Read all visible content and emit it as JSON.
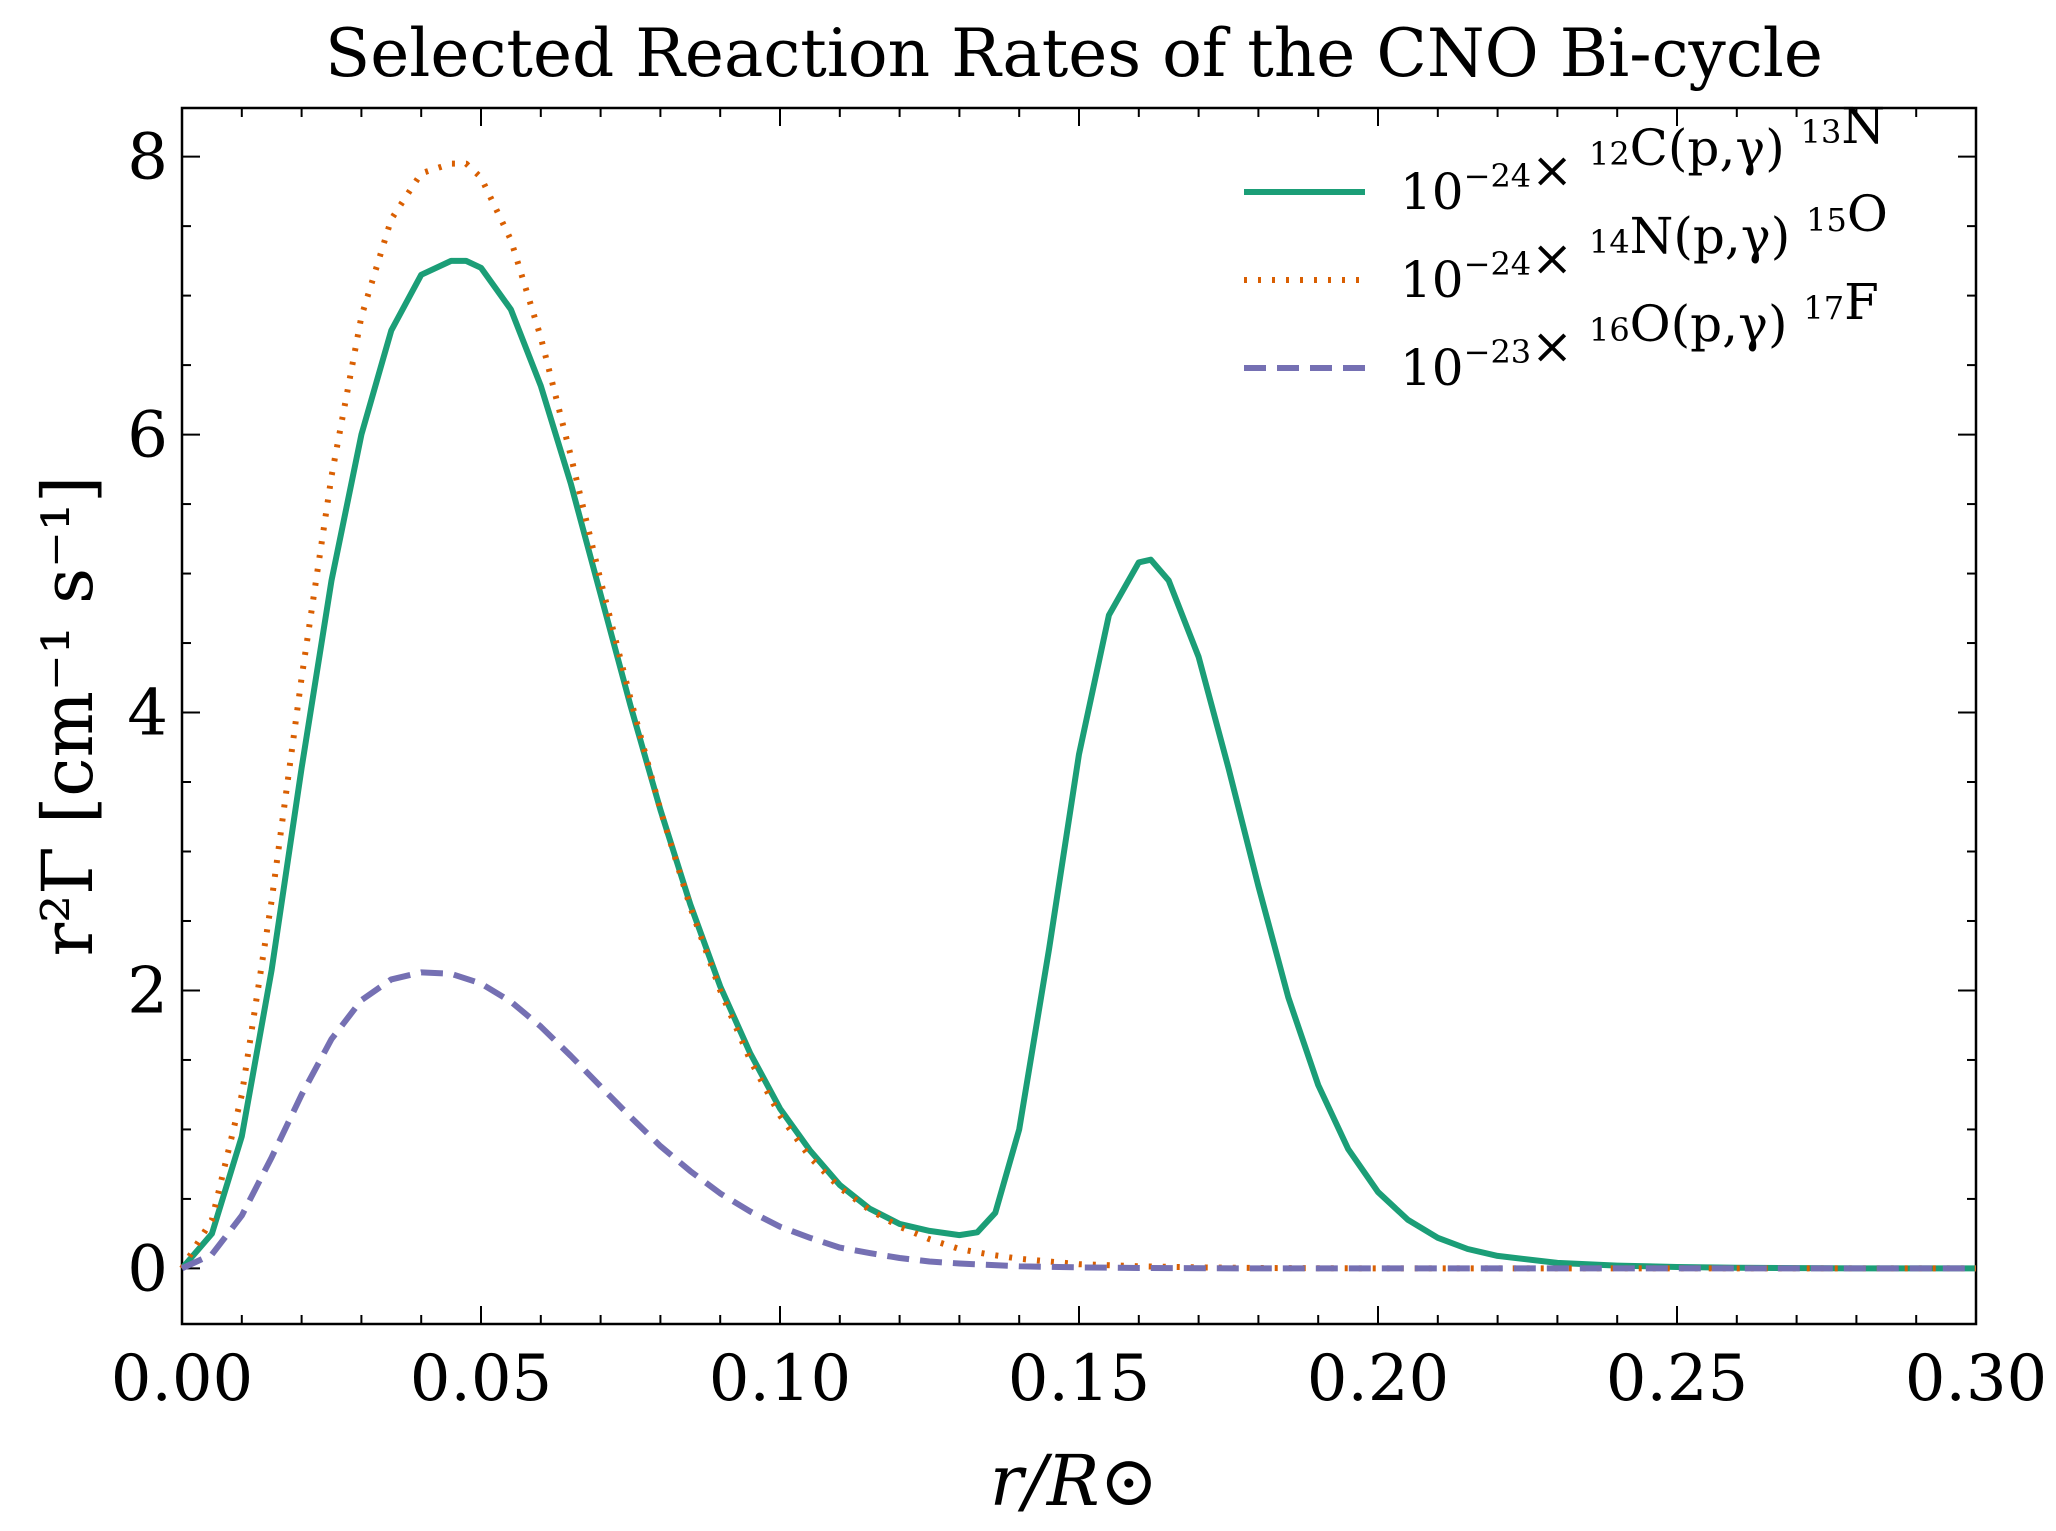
{
  "chart_data": {
    "type": "line",
    "title": "Selected Reaction Rates of the CNO Bi-cycle",
    "xlabel": "r/R⊙",
    "ylabel": "r²Γ [cm⁻¹ s⁻¹]",
    "xlim": [
      0.0,
      0.3
    ],
    "ylim": [
      -0.4,
      8.35
    ],
    "x_ticks": [
      0.0,
      0.05,
      0.1,
      0.15,
      0.2,
      0.25,
      0.3
    ],
    "x_tick_labels": [
      "0.00",
      "0.05",
      "0.10",
      "0.15",
      "0.20",
      "0.25",
      "0.30"
    ],
    "y_ticks": [
      0,
      2,
      4,
      6,
      8
    ],
    "y_tick_labels": [
      "0",
      "2",
      "4",
      "6",
      "8"
    ],
    "grid": false,
    "legend_position": "top-right",
    "series": [
      {
        "name": "10⁻²⁴× ¹²C(p,γ) ¹³N",
        "legend": {
          "scale": "10",
          "exp": "−24",
          "times": "×",
          "isoA": "12",
          "target": "C(p,γ)",
          "isoB": "13",
          "product": "N"
        },
        "color": "#1b9e77",
        "style": "solid",
        "x": [
          0,
          0.005,
          0.01,
          0.015,
          0.02,
          0.025,
          0.03,
          0.035,
          0.04,
          0.045,
          0.0475,
          0.05,
          0.055,
          0.06,
          0.065,
          0.07,
          0.075,
          0.08,
          0.085,
          0.09,
          0.095,
          0.1,
          0.105,
          0.11,
          0.115,
          0.12,
          0.125,
          0.13,
          0.133,
          0.136,
          0.14,
          0.145,
          0.15,
          0.155,
          0.16,
          0.162,
          0.165,
          0.17,
          0.175,
          0.18,
          0.185,
          0.19,
          0.195,
          0.2,
          0.205,
          0.21,
          0.215,
          0.22,
          0.23,
          0.24,
          0.25,
          0.26,
          0.28,
          0.3
        ],
        "y": [
          0,
          0.25,
          0.95,
          2.15,
          3.6,
          4.95,
          6.0,
          6.75,
          7.15,
          7.25,
          7.25,
          7.2,
          6.9,
          6.35,
          5.65,
          4.85,
          4.05,
          3.3,
          2.62,
          2.03,
          1.55,
          1.15,
          0.85,
          0.6,
          0.43,
          0.32,
          0.27,
          0.24,
          0.26,
          0.4,
          1.0,
          2.3,
          3.7,
          4.7,
          5.08,
          5.1,
          4.95,
          4.4,
          3.6,
          2.75,
          1.95,
          1.32,
          0.86,
          0.55,
          0.35,
          0.22,
          0.14,
          0.09,
          0.04,
          0.02,
          0.01,
          0.005,
          0.0,
          0.0
        ]
      },
      {
        "name": "10⁻²⁴× ¹⁴N(p,γ) ¹⁵O",
        "legend": {
          "scale": "10",
          "exp": "−24",
          "times": "×",
          "isoA": "14",
          "target": "N(p,γ)",
          "isoB": "15",
          "product": "O"
        },
        "color": "#d95f02",
        "style": "dotted",
        "x": [
          0,
          0.005,
          0.01,
          0.015,
          0.02,
          0.025,
          0.03,
          0.035,
          0.04,
          0.045,
          0.0475,
          0.05,
          0.055,
          0.06,
          0.065,
          0.07,
          0.075,
          0.08,
          0.085,
          0.09,
          0.095,
          0.1,
          0.105,
          0.11,
          0.115,
          0.12,
          0.125,
          0.13,
          0.135,
          0.14,
          0.145,
          0.15,
          0.16,
          0.17,
          0.18,
          0.2,
          0.25,
          0.3
        ],
        "y": [
          0,
          0.35,
          1.25,
          2.65,
          4.25,
          5.7,
          6.85,
          7.55,
          7.88,
          7.95,
          7.95,
          7.85,
          7.4,
          6.7,
          5.85,
          4.95,
          4.1,
          3.3,
          2.6,
          2.0,
          1.5,
          1.1,
          0.8,
          0.58,
          0.42,
          0.3,
          0.21,
          0.14,
          0.1,
          0.07,
          0.05,
          0.03,
          0.015,
          0.007,
          0.003,
          0.0,
          0.0,
          0.0
        ]
      },
      {
        "name": "10⁻²³× ¹⁶O(p,γ) ¹⁷F",
        "legend": {
          "scale": "10",
          "exp": "−23",
          "times": "×",
          "isoA": "16",
          "target": "O(p,γ)",
          "isoB": "17",
          "product": "F"
        },
        "color": "#7570b3",
        "style": "dashed",
        "x": [
          0,
          0.005,
          0.01,
          0.015,
          0.02,
          0.025,
          0.03,
          0.035,
          0.04,
          0.045,
          0.05,
          0.055,
          0.06,
          0.065,
          0.07,
          0.075,
          0.08,
          0.085,
          0.09,
          0.095,
          0.1,
          0.105,
          0.11,
          0.115,
          0.12,
          0.125,
          0.13,
          0.14,
          0.15,
          0.16,
          0.18,
          0.2,
          0.25,
          0.3
        ],
        "y": [
          0,
          0.1,
          0.38,
          0.8,
          1.25,
          1.65,
          1.93,
          2.08,
          2.13,
          2.12,
          2.05,
          1.92,
          1.74,
          1.53,
          1.31,
          1.09,
          0.88,
          0.7,
          0.54,
          0.41,
          0.3,
          0.22,
          0.15,
          0.11,
          0.075,
          0.05,
          0.035,
          0.015,
          0.007,
          0.003,
          0.0,
          0.0,
          0.0,
          0.0
        ]
      }
    ]
  }
}
